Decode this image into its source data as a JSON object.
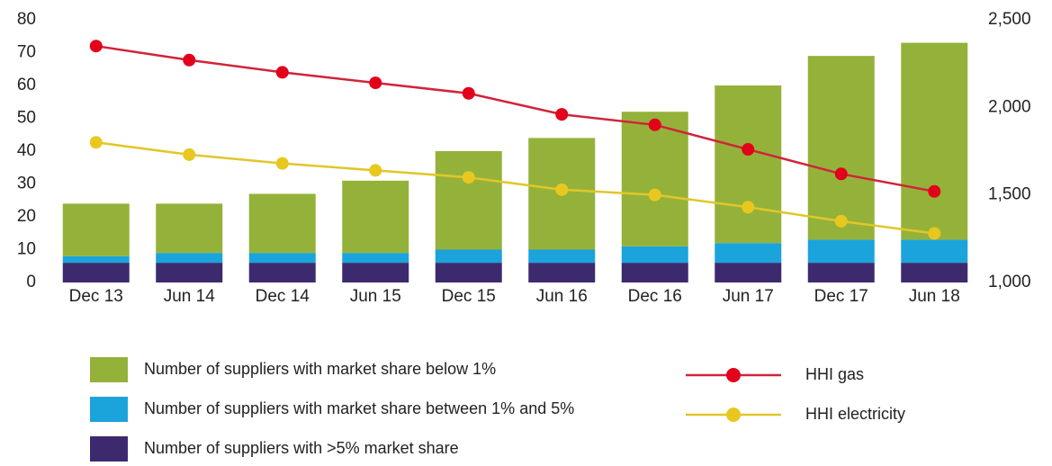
{
  "chart_data": {
    "type": "bar",
    "categories": [
      "Dec 13",
      "Jun 14",
      "Dec 14",
      "Jun 15",
      "Dec 15",
      "Jun 16",
      "Dec 16",
      "Jun 17",
      "Dec 17",
      "Jun 18"
    ],
    "stacked": true,
    "series": [
      {
        "name": "Number of suppliers with >5% market share",
        "color": "#3d2a6e",
        "values": [
          6,
          6,
          6,
          6,
          6,
          6,
          6,
          6,
          6,
          6
        ]
      },
      {
        "name": "Number of suppliers with market share between 1% and 5%",
        "color": "#1ba3dc",
        "values": [
          2,
          3,
          3,
          3,
          4,
          4,
          5,
          6,
          7,
          7
        ]
      },
      {
        "name": "Number of suppliers with market share below 1%",
        "color": "#94b23a",
        "values": [
          16,
          15,
          18,
          22,
          30,
          34,
          41,
          48,
          56,
          60
        ]
      },
      {
        "name": "HHI gas",
        "type": "line",
        "axis": "y2",
        "color": "#d0243a",
        "marker_color": "#e2001a",
        "values": [
          2350,
          2270,
          2200,
          2140,
          2080,
          1960,
          1900,
          1760,
          1620,
          1520
        ]
      },
      {
        "name": "HHI electricity",
        "type": "line",
        "axis": "y2",
        "color": "#e2c62a",
        "marker_color": "#e8c81f",
        "values": [
          1800,
          1730,
          1680,
          1640,
          1600,
          1530,
          1500,
          1430,
          1350,
          1280
        ]
      }
    ],
    "ylim": [
      0,
      80
    ],
    "yticks": [
      0,
      10,
      20,
      30,
      40,
      50,
      60,
      70,
      80
    ],
    "y2lim": [
      1000,
      2500
    ],
    "y2ticks": [
      {
        "value": 1000,
        "label": "1,000"
      },
      {
        "value": 1500,
        "label": "1,500"
      },
      {
        "value": 2000,
        "label": "2,000"
      },
      {
        "value": 2500,
        "label": "2,500"
      }
    ],
    "grid": false
  }
}
